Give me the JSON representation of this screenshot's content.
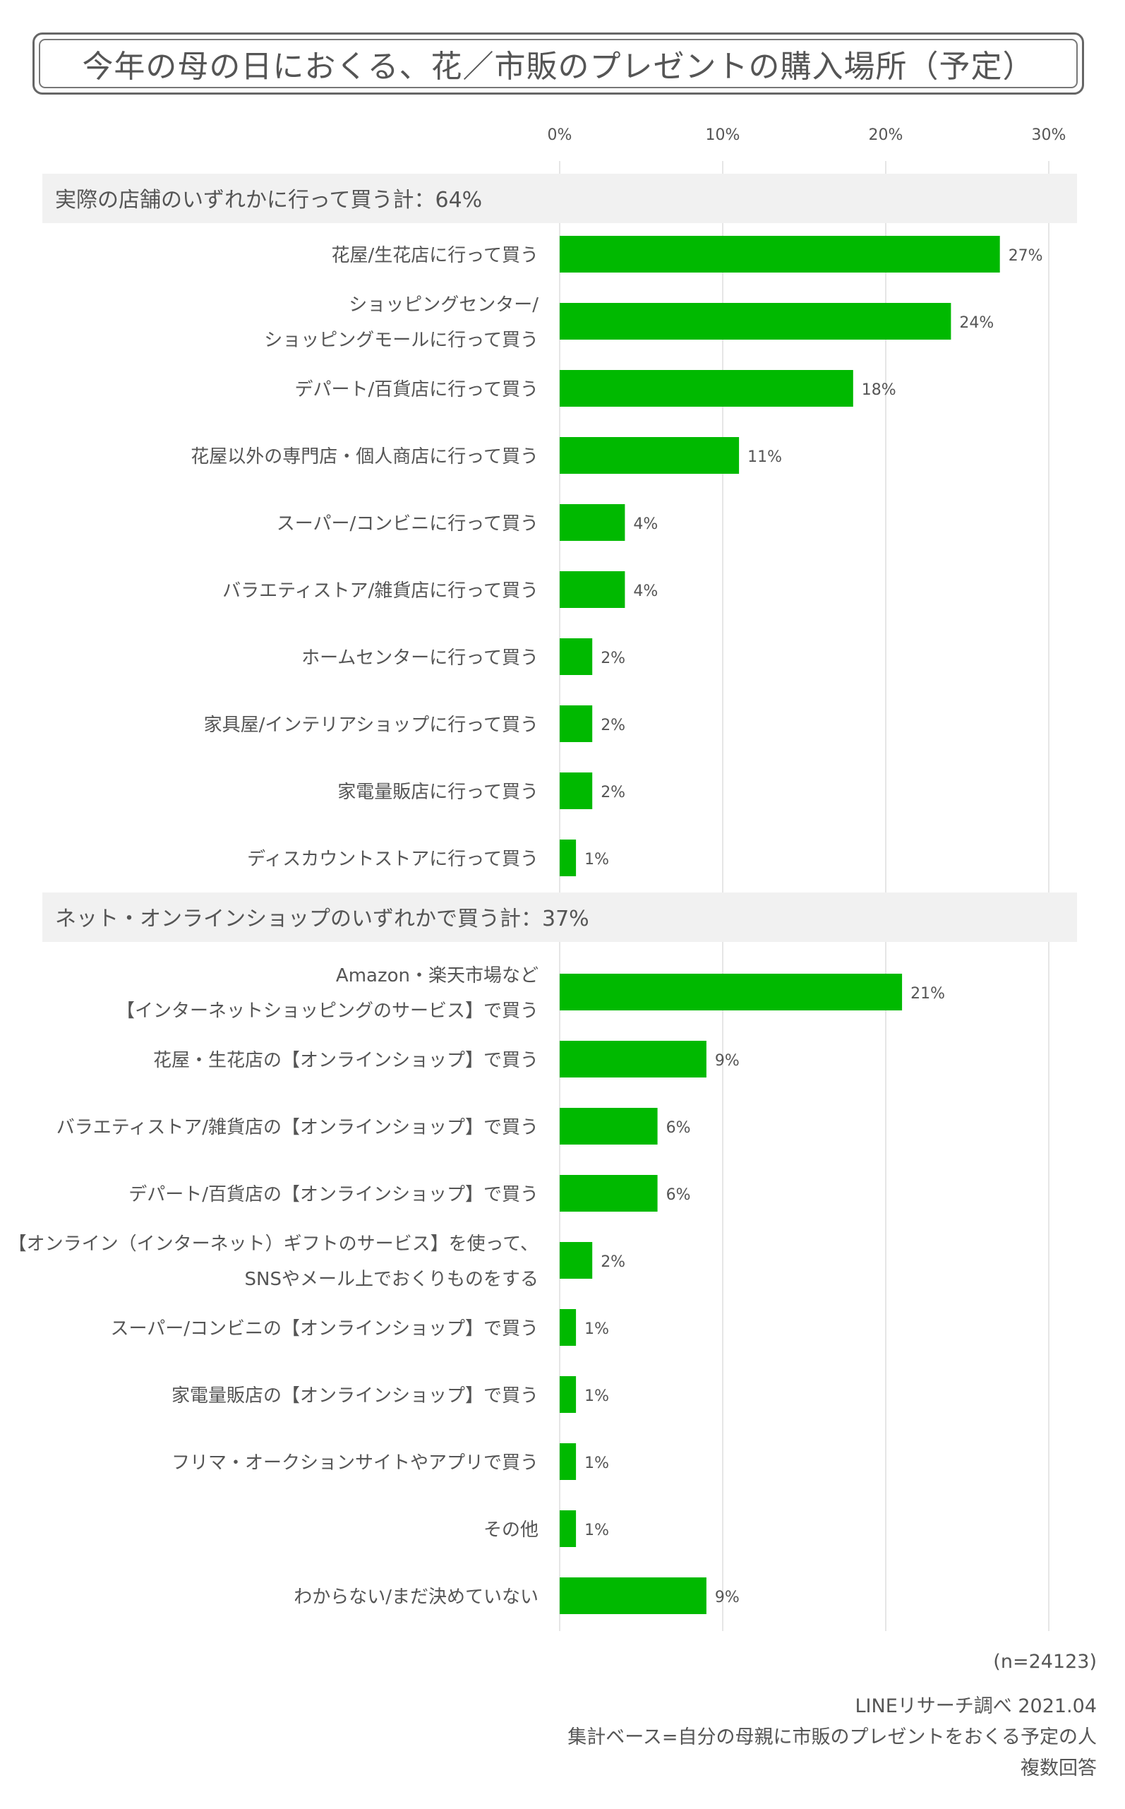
{
  "title": "今年の母の日におくる、花／市販のプレゼントの購入場所（予定）",
  "chart_data": {
    "type": "bar",
    "orientation": "horizontal",
    "title": "今年の母の日におくる、花／市販のプレゼントの購入場所（予定）",
    "xlim": [
      0,
      30
    ],
    "x_ticks": [
      "0%",
      "10%",
      "20%",
      "30%"
    ],
    "x_tick_values": [
      0,
      10,
      20,
      30
    ],
    "grid": true,
    "bar_color": "#00b900",
    "groups": [
      {
        "header": "実際の店舗のいずれかに行って買う計：64%",
        "items": [
          {
            "label": [
              "花屋/生花店に行って買う"
            ],
            "value": 27,
            "value_label": "27%"
          },
          {
            "label": [
              "ショッピングセンター/",
              "ショッピングモールに行って買う"
            ],
            "value": 24,
            "value_label": "24%"
          },
          {
            "label": [
              "デパート/百貨店に行って買う"
            ],
            "value": 18,
            "value_label": "18%"
          },
          {
            "label": [
              "花屋以外の専門店・個人商店に行って買う"
            ],
            "value": 11,
            "value_label": "11%"
          },
          {
            "label": [
              "スーパー/コンビニに行って買う"
            ],
            "value": 4,
            "value_label": "4%"
          },
          {
            "label": [
              "バラエティストア/雑貨店に行って買う"
            ],
            "value": 4,
            "value_label": "4%"
          },
          {
            "label": [
              "ホームセンターに行って買う"
            ],
            "value": 2,
            "value_label": "2%"
          },
          {
            "label": [
              "家具屋/インテリアショップに行って買う"
            ],
            "value": 2,
            "value_label": "2%"
          },
          {
            "label": [
              "家電量販店に行って買う"
            ],
            "value": 2,
            "value_label": "2%"
          },
          {
            "label": [
              "ディスカウントストアに行って買う"
            ],
            "value": 1,
            "value_label": "1%"
          }
        ]
      },
      {
        "header": "ネット・オンラインショップのいずれかで買う計：37%",
        "items": [
          {
            "label": [
              "Amazon・楽天市場など",
              "【インターネットショッピングのサービス】で買う"
            ],
            "value": 21,
            "value_label": "21%"
          },
          {
            "label": [
              "花屋・生花店の【オンラインショップ】で買う"
            ],
            "value": 9,
            "value_label": "9%"
          },
          {
            "label": [
              "バラエティストア/雑貨店の【オンラインショップ】で買う"
            ],
            "value": 6,
            "value_label": "6%"
          },
          {
            "label": [
              "デパート/百貨店の【オンラインショップ】で買う"
            ],
            "value": 6,
            "value_label": "6%"
          },
          {
            "label": [
              "【オンライン（インターネット）ギフトのサービス】を使って、",
              "SNSやメール上でおくりものをする"
            ],
            "value": 2,
            "value_label": "2%"
          },
          {
            "label": [
              "スーパー/コンビニの【オンラインショップ】で買う"
            ],
            "value": 1,
            "value_label": "1%"
          },
          {
            "label": [
              "家電量販店の【オンラインショップ】で買う"
            ],
            "value": 1,
            "value_label": "1%"
          },
          {
            "label": [
              "フリマ・オークションサイトやアプリで買う"
            ],
            "value": 1,
            "value_label": "1%"
          },
          {
            "label": [
              "その他"
            ],
            "value": 1,
            "value_label": "1%"
          },
          {
            "label": [
              "わからない/まだ決めていない"
            ],
            "value": 9,
            "value_label": "9%"
          }
        ]
      }
    ]
  },
  "footer": {
    "n": "(n=24123)",
    "source": "LINEリサーチ調べ 2021.04",
    "base": "集計ベース=自分の母親に市販のプレゼントをおくる予定の人",
    "note": "複数回答"
  }
}
